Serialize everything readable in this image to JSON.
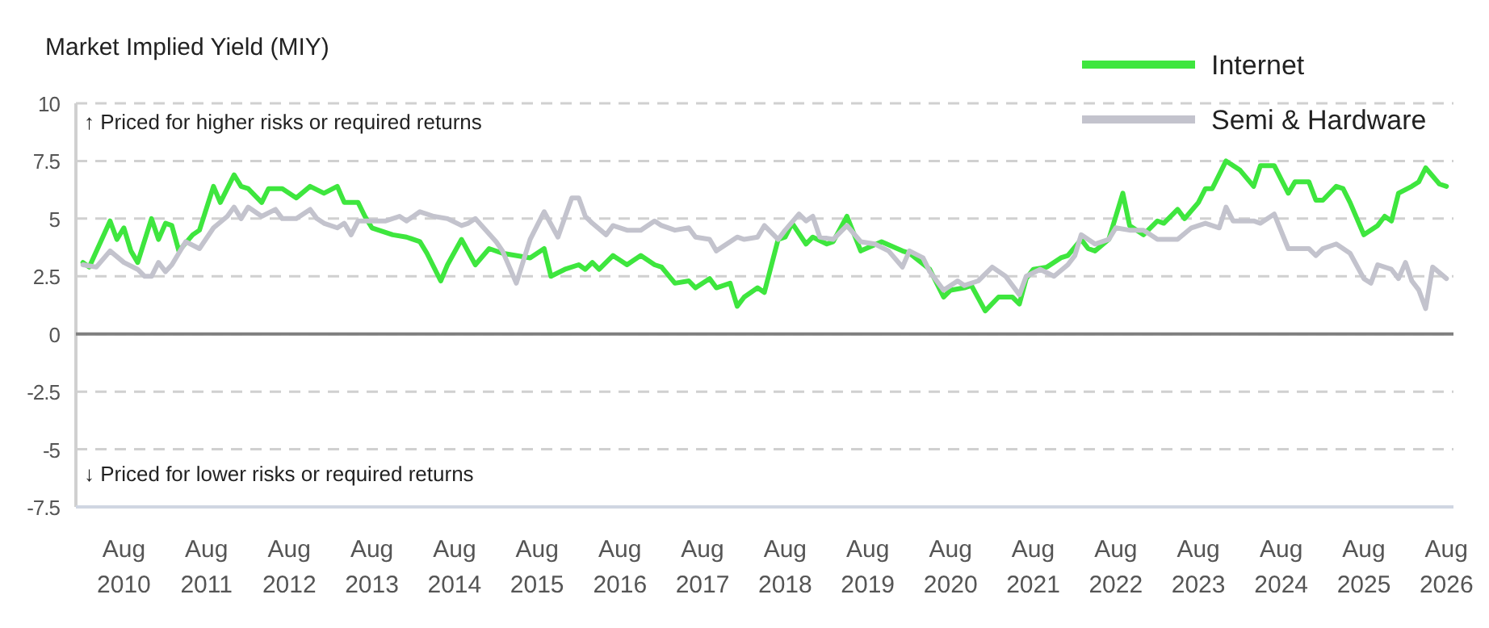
{
  "chart_data": {
    "type": "line",
    "title": "Market Implied Yield (MIY)",
    "annotations": [
      "↑ Priced for higher risks or required returns",
      "↓ Priced for lower risks or required returns"
    ],
    "xlim": [
      "2010-01",
      "2026-09"
    ],
    "xticks": [
      {
        "value": "2010-08",
        "label": "Aug 2010"
      },
      {
        "value": "2011-08",
        "label": "Aug 2011"
      },
      {
        "value": "2012-08",
        "label": "Aug 2012"
      },
      {
        "value": "2013-08",
        "label": "Aug 2013"
      },
      {
        "value": "2014-08",
        "label": "Aug 2014"
      },
      {
        "value": "2015-08",
        "label": "Aug 2015"
      },
      {
        "value": "2016-08",
        "label": "Aug 2016"
      },
      {
        "value": "2017-08",
        "label": "Aug 2017"
      },
      {
        "value": "2018-08",
        "label": "Aug 2018"
      },
      {
        "value": "2019-08",
        "label": "Aug 2019"
      },
      {
        "value": "2020-08",
        "label": "Aug 2020"
      },
      {
        "value": "2021-08",
        "label": "Aug 2021"
      },
      {
        "value": "2022-08",
        "label": "Aug 2022"
      },
      {
        "value": "2023-08",
        "label": "Aug 2023"
      },
      {
        "value": "2024-08",
        "label": "Aug 2024"
      },
      {
        "value": "2025-08",
        "label": "Aug 2025"
      },
      {
        "value": "2026-08",
        "label": "Aug 2026"
      }
    ],
    "ylim": [
      -7.5,
      10
    ],
    "yticks": [
      -7.5,
      -5,
      -2.5,
      0,
      2.5,
      5,
      7.5,
      10
    ],
    "grid": "y",
    "legend": "top right",
    "marker": "none",
    "line_style": "solid",
    "ref_lines": [
      {
        "axis": "y",
        "value": 0,
        "color": "#7f7f7f"
      }
    ],
    "series": [
      {
        "name": "Internet",
        "color": "#3ee63e",
        "x": [
          "2010-02",
          "2010-03",
          "2010-06",
          "2010-07",
          "2010-08",
          "2010-09",
          "2010-10",
          "2010-12",
          "2011-01",
          "2011-02",
          "2011-03",
          "2011-04",
          "2011-06",
          "2011-07",
          "2011-09",
          "2011-10",
          "2011-12",
          "2012-01",
          "2012-02",
          "2012-04",
          "2012-05",
          "2012-07",
          "2012-09",
          "2012-11",
          "2013-01",
          "2013-03",
          "2013-04",
          "2013-06",
          "2013-07",
          "2013-08",
          "2013-11",
          "2014-01",
          "2014-03",
          "2014-04",
          "2014-06",
          "2014-07",
          "2014-09",
          "2014-11",
          "2015-01",
          "2015-03",
          "2015-07",
          "2015-09",
          "2015-10",
          "2015-12",
          "2016-02",
          "2016-03",
          "2016-04",
          "2016-05",
          "2016-07",
          "2016-09",
          "2016-11",
          "2017-01",
          "2017-02",
          "2017-04",
          "2017-06",
          "2017-07",
          "2017-09",
          "2017-10",
          "2017-12",
          "2018-01",
          "2018-02",
          "2018-04",
          "2018-05",
          "2018-07",
          "2018-08",
          "2018-09",
          "2018-11",
          "2018-12",
          "2019-02",
          "2019-03",
          "2019-05",
          "2019-07",
          "2019-10",
          "2020-01",
          "2020-02",
          "2020-05",
          "2020-07",
          "2020-08",
          "2020-10",
          "2020-11",
          "2021-01",
          "2021-03",
          "2021-05",
          "2021-06",
          "2021-07",
          "2021-08",
          "2021-10",
          "2021-12",
          "2022-01",
          "2022-03",
          "2022-04",
          "2022-05",
          "2022-07",
          "2022-09",
          "2022-10",
          "2022-12",
          "2023-02",
          "2023-03",
          "2023-05",
          "2023-06",
          "2023-08",
          "2023-09",
          "2023-10",
          "2023-12",
          "2024-02",
          "2024-04",
          "2024-05",
          "2024-07",
          "2024-09",
          "2024-10",
          "2024-12",
          "2025-01",
          "2025-02",
          "2025-04",
          "2025-05",
          "2025-06",
          "2025-08",
          "2025-10",
          "2025-11",
          "2025-12",
          "2026-01",
          "2026-03",
          "2026-04",
          "2026-05",
          "2026-07",
          "2026-08"
        ],
        "values": [
          3.1,
          2.9,
          4.9,
          4.1,
          4.6,
          3.6,
          3.1,
          5.0,
          4.1,
          4.8,
          4.7,
          3.6,
          4.3,
          4.5,
          6.4,
          5.7,
          6.9,
          6.4,
          6.3,
          5.7,
          6.3,
          6.3,
          5.9,
          6.4,
          6.1,
          6.4,
          5.7,
          5.7,
          5.1,
          4.6,
          4.3,
          4.2,
          4.0,
          3.5,
          2.3,
          3.0,
          4.1,
          3.0,
          3.7,
          3.5,
          3.3,
          3.7,
          2.5,
          2.8,
          3.0,
          2.8,
          3.1,
          2.8,
          3.4,
          3.0,
          3.4,
          3.0,
          2.9,
          2.2,
          2.3,
          2.0,
          2.4,
          2.0,
          2.2,
          1.2,
          1.6,
          2.0,
          1.8,
          4.1,
          4.2,
          4.8,
          3.9,
          4.2,
          3.9,
          4.0,
          5.1,
          3.6,
          4.0,
          3.6,
          3.5,
          2.8,
          1.6,
          1.9,
          2.0,
          2.1,
          1.0,
          1.6,
          1.6,
          1.3,
          2.4,
          2.8,
          2.9,
          3.3,
          3.4,
          4.1,
          3.7,
          3.6,
          4.1,
          6.1,
          4.7,
          4.3,
          4.9,
          4.8,
          5.4,
          5.0,
          5.7,
          6.3,
          6.3,
          7.5,
          7.1,
          6.4,
          7.3,
          7.3,
          6.1,
          6.6,
          6.6,
          5.8,
          5.8,
          6.4,
          6.3,
          5.7,
          4.3,
          4.7,
          5.1,
          4.9,
          6.1,
          6.4,
          6.6,
          7.2,
          6.5,
          6.4
        ]
      },
      {
        "name": "Semi & Hardware",
        "color": "#c3c3cd",
        "x": [
          "2010-02",
          "2010-04",
          "2010-06",
          "2010-08",
          "2010-10",
          "2010-11",
          "2010-12",
          "2011-01",
          "2011-02",
          "2011-03",
          "2011-05",
          "2011-07",
          "2011-09",
          "2011-11",
          "2011-12",
          "2012-01",
          "2012-02",
          "2012-04",
          "2012-06",
          "2012-07",
          "2012-09",
          "2012-11",
          "2012-12",
          "2013-01",
          "2013-03",
          "2013-04",
          "2013-05",
          "2013-06",
          "2013-08",
          "2013-10",
          "2013-12",
          "2014-01",
          "2014-03",
          "2014-05",
          "2014-07",
          "2014-09",
          "2014-10",
          "2014-11",
          "2015-02",
          "2015-03",
          "2015-05",
          "2015-07",
          "2015-09",
          "2015-11",
          "2016-01",
          "2016-02",
          "2016-03",
          "2016-04",
          "2016-06",
          "2016-07",
          "2016-09",
          "2016-11",
          "2017-01",
          "2017-02",
          "2017-04",
          "2017-06",
          "2017-07",
          "2017-09",
          "2017-10",
          "2017-12",
          "2018-01",
          "2018-02",
          "2018-04",
          "2018-05",
          "2018-07",
          "2018-08",
          "2018-10",
          "2018-11",
          "2018-12",
          "2019-01",
          "2019-03",
          "2019-05",
          "2019-07",
          "2019-09",
          "2019-11",
          "2020-01",
          "2020-02",
          "2020-04",
          "2020-05",
          "2020-07",
          "2020-09",
          "2020-10",
          "2020-12",
          "2021-02",
          "2021-04",
          "2021-06",
          "2021-07",
          "2021-09",
          "2021-11",
          "2022-01",
          "2022-02",
          "2022-03",
          "2022-05",
          "2022-07",
          "2022-08",
          "2022-10",
          "2022-12",
          "2023-01",
          "2023-02",
          "2023-05",
          "2023-07",
          "2023-09",
          "2023-11",
          "2023-12",
          "2024-01",
          "2024-04",
          "2024-05",
          "2024-07",
          "2024-09",
          "2024-12",
          "2025-01",
          "2025-02",
          "2025-04",
          "2025-06",
          "2025-08",
          "2025-09",
          "2025-10",
          "2025-12",
          "2026-01",
          "2026-02",
          "2026-03",
          "2026-04",
          "2026-05",
          "2026-06",
          "2026-08"
        ],
        "values": [
          3.0,
          2.9,
          3.6,
          3.1,
          2.8,
          2.5,
          2.5,
          3.1,
          2.7,
          3.0,
          4.0,
          3.7,
          4.6,
          5.1,
          5.5,
          5.0,
          5.5,
          5.1,
          5.4,
          5.0,
          5.0,
          5.4,
          5.0,
          4.8,
          4.6,
          4.8,
          4.3,
          4.9,
          4.9,
          4.9,
          5.1,
          4.9,
          5.3,
          5.1,
          5.0,
          4.7,
          4.8,
          5.0,
          4.0,
          3.6,
          2.2,
          4.1,
          5.3,
          4.2,
          5.9,
          5.9,
          5.1,
          4.8,
          4.3,
          4.7,
          4.5,
          4.5,
          4.9,
          4.7,
          4.5,
          4.6,
          4.2,
          4.1,
          3.6,
          4.0,
          4.2,
          4.1,
          4.2,
          4.7,
          4.1,
          4.5,
          5.2,
          4.9,
          5.1,
          4.2,
          4.1,
          4.7,
          4.0,
          3.9,
          3.6,
          2.9,
          3.6,
          3.3,
          2.7,
          1.9,
          2.3,
          2.1,
          2.3,
          2.9,
          2.5,
          1.7,
          2.5,
          2.8,
          2.5,
          3.0,
          3.4,
          4.3,
          3.9,
          4.1,
          4.6,
          4.5,
          4.5,
          4.3,
          4.1,
          4.1,
          4.6,
          4.8,
          4.6,
          5.5,
          4.9,
          4.9,
          4.8,
          5.2,
          3.7,
          3.7,
          3.4,
          3.7,
          3.9,
          3.5,
          2.4,
          2.2,
          3.0,
          2.8,
          2.4,
          3.1,
          2.3,
          1.9,
          1.1,
          2.9,
          2.4
        ]
      }
    ]
  }
}
